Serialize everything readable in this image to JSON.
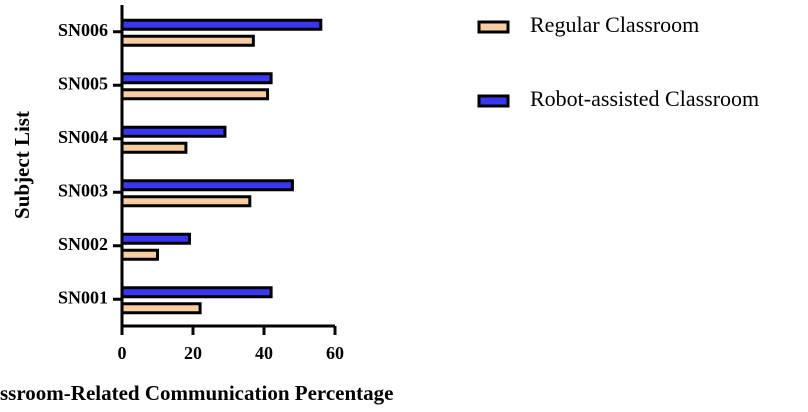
{
  "chart_data": {
    "type": "barh",
    "xlabel": "ssroom-Related Communication  Percentage",
    "ylabel": "Subject List",
    "categories": [
      "SN001",
      "SN002",
      "SN003",
      "SN004",
      "SN005",
      "SN006"
    ],
    "series": [
      {
        "name": "Regular Classroom",
        "color": "#f9cda2",
        "values": [
          22,
          10,
          36,
          18,
          41,
          37
        ]
      },
      {
        "name": "Robot-assisted Classroom",
        "color": "#3a37f0",
        "values": [
          42,
          19,
          48,
          29,
          42,
          56
        ]
      }
    ],
    "xlim": [
      0,
      60
    ],
    "xticks": [
      0,
      20,
      40,
      60
    ],
    "legend": "right"
  }
}
